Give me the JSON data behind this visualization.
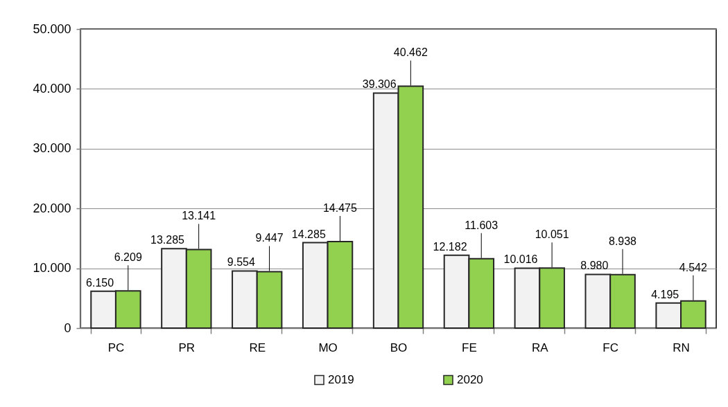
{
  "chart_data": {
    "type": "bar",
    "categories": [
      "PC",
      "PR",
      "RE",
      "MO",
      "BO",
      "FE",
      "RA",
      "FC",
      "RN"
    ],
    "series": [
      {
        "name": "2019",
        "color": "#f2f2f2",
        "values": [
          6150,
          13285,
          9554,
          14285,
          39306,
          12182,
          10016,
          8980,
          4195
        ],
        "value_labels": [
          "6.150",
          "13.285",
          "9.554",
          "14.285",
          "39.306",
          "12.182",
          "10.016",
          "8.980",
          "4.195"
        ]
      },
      {
        "name": "2020",
        "color": "#92d050",
        "values": [
          6209,
          13141,
          9447,
          14475,
          40462,
          11603,
          10051,
          8938,
          4542
        ],
        "value_labels": [
          "6.209",
          "13.141",
          "9.447",
          "14.475",
          "40.462",
          "11.603",
          "10.051",
          "8.938",
          "4.542"
        ]
      }
    ],
    "ylim": [
      0,
      50000
    ],
    "yticks": [
      0,
      {
        "value": 10000,
        "label": "10.000"
      },
      {
        "value": 20000,
        "label": "20.000"
      },
      {
        "value": 30000,
        "label": "30.000"
      },
      {
        "value": 40000,
        "label": "40.000"
      },
      {
        "value": 50000,
        "label": "50.000"
      }
    ],
    "grid": "y",
    "legend": "bottom"
  }
}
